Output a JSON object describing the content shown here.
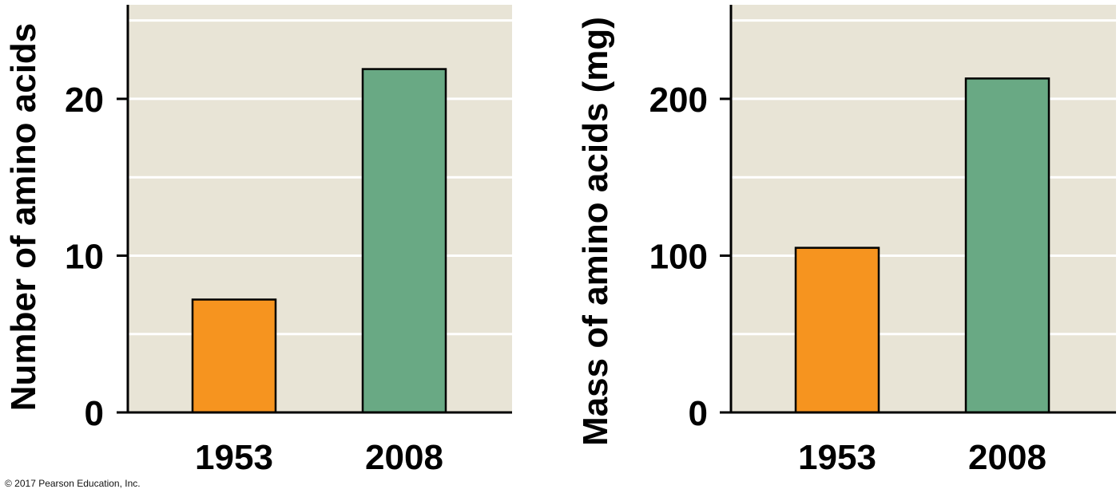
{
  "colors": {
    "panel_background": "#e8e4d6",
    "gridline": "#ffffff",
    "axis": "#000000",
    "bar_1953": "#f6941f",
    "bar_2008": "#69a984",
    "text": "#000000"
  },
  "chart_data": [
    {
      "type": "bar",
      "categories": [
        "1953",
        "2008"
      ],
      "values": [
        7.2,
        21.9
      ],
      "ylabel": "Number of amino acids",
      "xlabel": "",
      "ylim": [
        0,
        26
      ],
      "yticks": [
        0,
        10,
        20
      ],
      "minor_gridlines": [
        5,
        15,
        25
      ],
      "grid": true,
      "bar_colors": [
        "#f6941f",
        "#69a984"
      ]
    },
    {
      "type": "bar",
      "categories": [
        "1953",
        "2008"
      ],
      "values": [
        105,
        213
      ],
      "ylabel": "Mass of amino acids (mg)",
      "xlabel": "",
      "ylim": [
        0,
        260
      ],
      "yticks": [
        0,
        100,
        200
      ],
      "minor_gridlines": [
        50,
        150,
        250
      ],
      "grid": true,
      "bar_colors": [
        "#f6941f",
        "#69a984"
      ]
    }
  ],
  "footer": {
    "copyright": "© 2017 Pearson Education, Inc."
  }
}
